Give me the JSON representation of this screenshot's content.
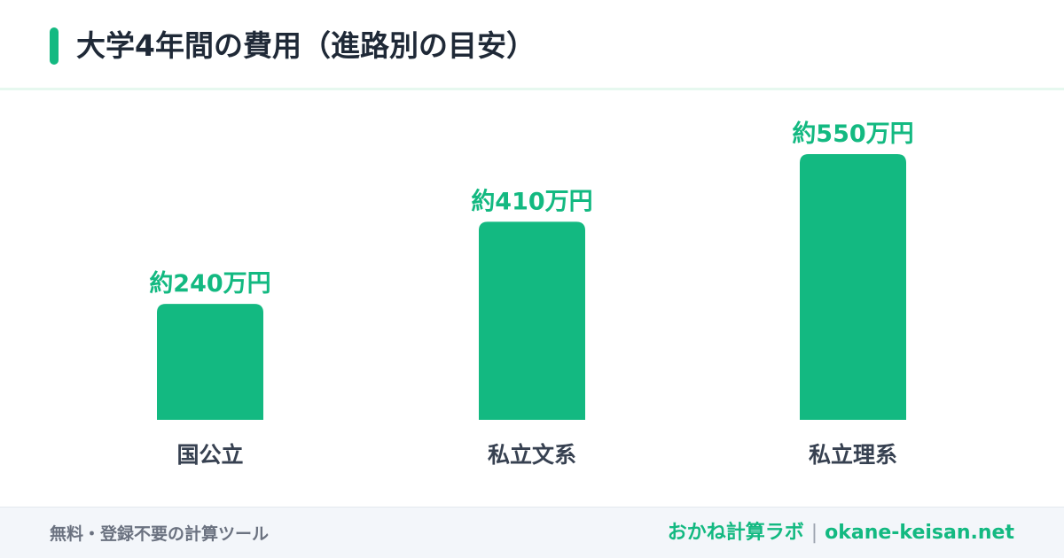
{
  "title": "大学4年間の費用（進路別の目安）",
  "colors": {
    "accent": "#13b981",
    "title_text": "#1f2937",
    "category_text": "#374151",
    "footer_bg": "#f3f6fa",
    "footer_text": "#6b7280"
  },
  "chart_data": {
    "type": "bar",
    "categories": [
      "国公立",
      "私立文系",
      "私立理系"
    ],
    "values": [
      240,
      410,
      550
    ],
    "data_labels": [
      "約240万円",
      "約410万円",
      "約550万円"
    ],
    "unit": "万円",
    "ylim": [
      0,
      550
    ],
    "grid": false,
    "legend": "none"
  },
  "footer": {
    "tagline": "無料・登録不要の計算ツール",
    "brand_name": "おかね計算ラボ",
    "separator": "|",
    "site": "okane-keisan.net"
  }
}
